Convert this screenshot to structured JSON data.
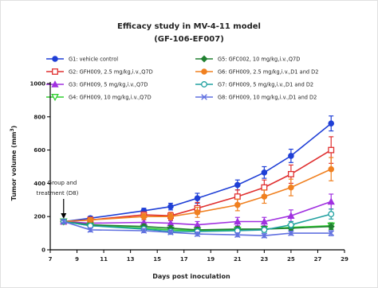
{
  "chart_data": {
    "type": "line",
    "title": "Efficacy study in MV-4-11 model",
    "subtitle": "(GF-106-EF007)",
    "xlabel": "Days post inoculation",
    "ylabel_prefix": "Tumor volume (mm",
    "ylabel_sup": "3",
    "ylabel_suffix": ")",
    "xlim": [
      7,
      29
    ],
    "ylim": [
      0,
      1000
    ],
    "xticks": [
      7,
      9,
      11,
      13,
      15,
      17,
      19,
      21,
      23,
      25,
      27,
      29
    ],
    "yticks": [
      0,
      200,
      400,
      600,
      800,
      1000
    ],
    "grid": false,
    "legend_position": "top",
    "annotation": {
      "line1": "Group and",
      "line2": "treatment (D8)",
      "x": 8
    },
    "series": [
      {
        "name": "G1: vehicle control",
        "color": "#1f3fd6",
        "marker": "filled-circle",
        "x": [
          8,
          10,
          14,
          16,
          18,
          21,
          23,
          25,
          28
        ],
        "y": [
          170,
          190,
          235,
          260,
          310,
          390,
          465,
          565,
          760
        ],
        "err": [
          10,
          12,
          15,
          20,
          30,
          30,
          35,
          40,
          45
        ]
      },
      {
        "name": "G2: GFH009, 2.5 mg/kg,i.v.,Q7D",
        "color": "#e03030",
        "marker": "open-square",
        "x": [
          8,
          10,
          14,
          16,
          18,
          21,
          23,
          25,
          28
        ],
        "y": [
          170,
          180,
          210,
          205,
          250,
          320,
          375,
          455,
          600
        ],
        "err": [
          10,
          12,
          18,
          20,
          35,
          40,
          45,
          55,
          80
        ]
      },
      {
        "name": "G3: GFH009, 5 mg/kg,i.v.,Q7D",
        "color": "#a030e0",
        "marker": "filled-triangle",
        "x": [
          8,
          10,
          14,
          16,
          18,
          21,
          23,
          25,
          28
        ],
        "y": [
          170,
          160,
          165,
          160,
          150,
          170,
          170,
          205,
          290
        ],
        "err": [
          10,
          12,
          15,
          15,
          20,
          25,
          25,
          35,
          45
        ]
      },
      {
        "name": "G4: GFH009, 10 mg/kg,i.v.,Q7D",
        "color": "#30d030",
        "marker": "open-triangle-down",
        "x": [
          8,
          10,
          14,
          16,
          18,
          21,
          23,
          25,
          28
        ],
        "y": [
          170,
          145,
          130,
          120,
          115,
          120,
          125,
          135,
          145
        ],
        "err": [
          10,
          12,
          15,
          15,
          15,
          15,
          15,
          15,
          18
        ]
      },
      {
        "name": "G5: GFC002, 10 mg/kg,i.v.,Q7D",
        "color": "#208030",
        "marker": "diamond",
        "x": [
          8,
          10,
          14,
          16,
          18,
          21,
          23,
          25,
          28
        ],
        "y": [
          170,
          150,
          140,
          130,
          120,
          125,
          125,
          130,
          140
        ],
        "err": [
          10,
          12,
          15,
          15,
          15,
          15,
          15,
          15,
          18
        ]
      },
      {
        "name": "G6: GFH009, 2.5 mg/kg,i.v.,D1 and D2",
        "color": "#f08020",
        "marker": "filled-circle",
        "x": [
          8,
          10,
          14,
          16,
          18,
          21,
          23,
          25,
          28
        ],
        "y": [
          170,
          180,
          200,
          200,
          225,
          270,
          320,
          375,
          485
        ],
        "err": [
          10,
          12,
          18,
          20,
          30,
          35,
          40,
          50,
          70
        ]
      },
      {
        "name": "G7: GFH009, 5 mg/kg,i.v.,D1 and D2",
        "color": "#20a0a0",
        "marker": "open-circle",
        "x": [
          8,
          10,
          14,
          16,
          18,
          21,
          23,
          25,
          28
        ],
        "y": [
          170,
          145,
          125,
          110,
          110,
          115,
          120,
          150,
          215
        ],
        "err": [
          10,
          12,
          12,
          12,
          15,
          15,
          15,
          20,
          30
        ]
      },
      {
        "name": "G8: GFH009, 10 mg/kg,i.v.,D1 and D2",
        "color": "#6070e0",
        "marker": "x",
        "x": [
          8,
          10,
          14,
          16,
          18,
          21,
          23,
          25,
          28
        ],
        "y": [
          170,
          120,
          115,
          105,
          95,
          90,
          85,
          100,
          100
        ],
        "err": [
          10,
          12,
          12,
          12,
          12,
          12,
          12,
          12,
          15
        ]
      }
    ]
  }
}
